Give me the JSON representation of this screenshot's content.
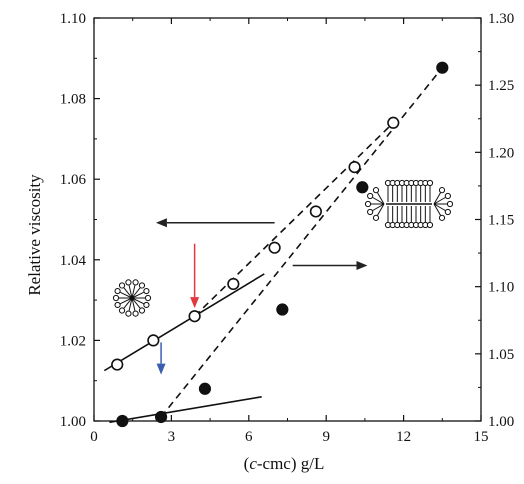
{
  "chart_data": {
    "type": "scatter",
    "title": "",
    "xlabel_prefix": "(",
    "xlabel_italic": "c",
    "xlabel_rest": "-cmc) g/L",
    "ylabel": "Relative viscosity",
    "xlim": [
      0,
      15
    ],
    "ylim_left": [
      1.0,
      1.1
    ],
    "ylim_right": [
      1.0,
      1.3
    ],
    "x_ticks": [
      0,
      3,
      6,
      9,
      12,
      15
    ],
    "y_ticks_left": [
      "1.00",
      "1.02",
      "1.04",
      "1.06",
      "1.08",
      "1.10"
    ],
    "y_ticks_right": [
      "1.00",
      "1.05",
      "1.10",
      "1.15",
      "1.20",
      "1.25",
      "1.30"
    ],
    "grid": false,
    "series": [
      {
        "axis": "left",
        "marker": "open-circle",
        "points": [
          [
            0.9,
            1.014
          ],
          [
            2.3,
            1.02
          ],
          [
            3.9,
            1.026
          ],
          [
            5.4,
            1.034
          ],
          [
            7.0,
            1.043
          ],
          [
            8.6,
            1.052
          ],
          [
            10.1,
            1.063
          ],
          [
            11.6,
            1.074
          ]
        ],
        "fit_lines": [
          {
            "style": "solid",
            "from": [
              0.4,
              1.0125
            ],
            "to": [
              6.6,
              1.0365
            ]
          },
          {
            "style": "dashed",
            "from": [
              3.9,
              1.026
            ],
            "to": [
              11.6,
              1.074
            ]
          }
        ]
      },
      {
        "axis": "right",
        "marker": "filled-circle",
        "points": [
          [
            1.1,
            1.0
          ],
          [
            2.6,
            1.003
          ],
          [
            4.3,
            1.024
          ],
          [
            7.3,
            1.083
          ],
          [
            10.4,
            1.174
          ],
          [
            13.5,
            1.263
          ]
        ],
        "fit_lines": [
          {
            "style": "solid",
            "from": [
              0.6,
              0.999
            ],
            "to": [
              6.5,
              1.018
            ]
          },
          {
            "style": "dashed",
            "from": [
              2.6,
              1.003
            ],
            "to": [
              13.5,
              1.263
            ]
          }
        ]
      }
    ],
    "annotations": [
      {
        "type": "arrow",
        "color": "#222222",
        "axis": "left",
        "from": [
          7.0,
          1.0492
        ],
        "to": [
          2.4,
          1.0492
        ],
        "meaning": "left-axis series"
      },
      {
        "type": "arrow",
        "color": "#222222",
        "axis": "left",
        "from": [
          7.7,
          1.0386
        ],
        "to": [
          10.6,
          1.0386
        ],
        "meaning": "right-axis series"
      },
      {
        "type": "arrow",
        "color": "#e0393e",
        "axis": "left",
        "from": [
          3.9,
          1.044
        ],
        "to": [
          3.9,
          1.028
        ],
        "meaning": "break on open-circle curve"
      },
      {
        "type": "arrow",
        "color": "#3a5fb0",
        "axis": "left",
        "from": [
          2.6,
          1.0195
        ],
        "to": [
          2.6,
          1.0115
        ],
        "meaning": "break on filled-circle curve"
      },
      {
        "type": "icon",
        "name": "spherical-micelle-icon"
      },
      {
        "type": "icon",
        "name": "rod-micelle-icon"
      }
    ]
  }
}
